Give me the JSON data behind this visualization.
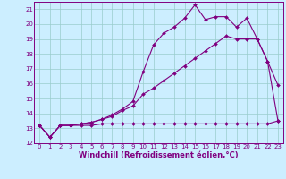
{
  "x": [
    0,
    1,
    2,
    3,
    4,
    5,
    6,
    7,
    8,
    9,
    10,
    11,
    12,
    13,
    14,
    15,
    16,
    17,
    18,
    19,
    20,
    21,
    22,
    23
  ],
  "line_flat": [
    13.2,
    12.4,
    13.2,
    13.2,
    13.2,
    13.2,
    13.3,
    13.3,
    13.3,
    13.3,
    13.3,
    13.3,
    13.3,
    13.3,
    13.3,
    13.3,
    13.3,
    13.3,
    13.3,
    13.3,
    13.3,
    13.3,
    13.3,
    13.5
  ],
  "line_diag": [
    13.2,
    12.4,
    13.2,
    13.2,
    13.3,
    13.4,
    13.6,
    13.8,
    14.2,
    14.5,
    15.3,
    15.7,
    16.2,
    16.7,
    17.2,
    17.7,
    18.2,
    18.7,
    19.2,
    19.0,
    19.0,
    19.0,
    17.5,
    15.9
  ],
  "line_curve": [
    13.2,
    12.4,
    13.2,
    13.2,
    13.3,
    13.4,
    13.6,
    13.9,
    14.3,
    14.8,
    16.8,
    18.6,
    19.4,
    19.8,
    20.4,
    21.3,
    20.3,
    20.5,
    20.5,
    19.8,
    20.4,
    19.0,
    17.5,
    13.5
  ],
  "color": "#800080",
  "bg_color": "#cceeff",
  "grid_color": "#99cccc",
  "ylim": [
    12,
    21.5
  ],
  "xlim": [
    -0.5,
    23.5
  ],
  "yticks": [
    12,
    13,
    14,
    15,
    16,
    17,
    18,
    19,
    20,
    21
  ],
  "xticks": [
    0,
    1,
    2,
    3,
    4,
    5,
    6,
    7,
    8,
    9,
    10,
    11,
    12,
    13,
    14,
    15,
    16,
    17,
    18,
    19,
    20,
    21,
    22,
    23
  ],
  "xlabel": "Windchill (Refroidissement éolien,°C)",
  "marker": "D",
  "markersize": 2.0,
  "linewidth": 0.8,
  "tick_fontsize": 5.0,
  "label_fontsize": 6.0
}
